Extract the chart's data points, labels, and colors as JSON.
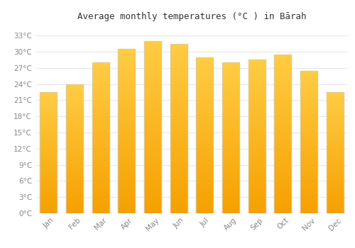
{
  "title": "Average monthly temperatures (°C ) in Bārah",
  "months": [
    "Jan",
    "Feb",
    "Mar",
    "Apr",
    "May",
    "Jun",
    "Jul",
    "Aug",
    "Sep",
    "Oct",
    "Nov",
    "Dec"
  ],
  "values": [
    22.5,
    24.0,
    28.0,
    30.5,
    32.0,
    31.5,
    29.0,
    28.0,
    28.5,
    29.5,
    26.5,
    22.5
  ],
  "bar_color_light": "#FFCC44",
  "bar_color_dark": "#F5A000",
  "bar_edge_color": "#CCCCCC",
  "background_color": "#FFFFFF",
  "grid_color": "#E8E8E8",
  "yticks": [
    0,
    3,
    6,
    9,
    12,
    15,
    18,
    21,
    24,
    27,
    30,
    33
  ],
  "ylim": [
    0,
    35
  ],
  "title_fontsize": 9,
  "tick_fontsize": 7.5,
  "tick_color": "#888888",
  "title_color": "#333333"
}
